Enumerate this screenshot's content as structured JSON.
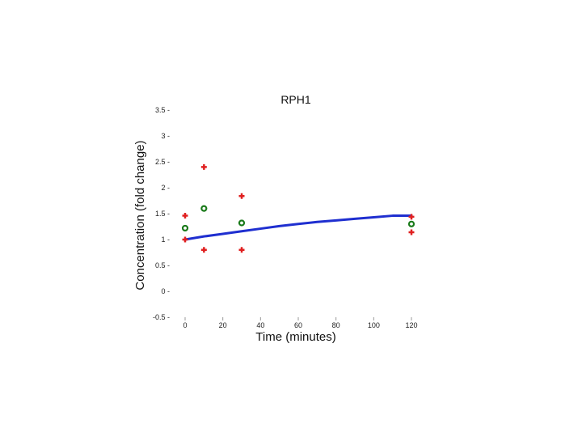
{
  "chart_data": {
    "type": "scatter",
    "title": "RPH1",
    "xlabel": "Time (minutes)",
    "ylabel": "Concentration (fold change)",
    "xlim": [
      0,
      120
    ],
    "ylim": [
      -0.5,
      3.5
    ],
    "xticks": [
      0,
      20,
      40,
      60,
      80,
      100,
      120
    ],
    "xtick_labels": [
      "0",
      "20",
      "40",
      "60",
      "80",
      "100",
      "120"
    ],
    "yticks": [
      -0.5,
      0,
      0.5,
      1,
      1.5,
      2,
      2.5,
      3,
      3.5
    ],
    "ytick_labels": [
      "-0.5 -",
      "0 -",
      "0.5 -",
      "1 -",
      "1.5 -",
      "2 -",
      "2.5 -",
      "3 -",
      "3.5 -"
    ],
    "grid": false,
    "series": [
      {
        "kind": "points",
        "marker": "plus",
        "color": "#e02020",
        "x": [
          0,
          0,
          10,
          10,
          30,
          30,
          120,
          120
        ],
        "y": [
          1.0,
          1.46,
          0.8,
          2.4,
          0.8,
          1.84,
          1.14,
          1.44
        ]
      },
      {
        "kind": "points",
        "marker": "circle",
        "color": "#1a7a1a",
        "x": [
          0,
          10,
          30,
          120
        ],
        "y": [
          1.22,
          1.6,
          1.32,
          1.3
        ]
      },
      {
        "kind": "line",
        "color": "#1f2fd0",
        "x": [
          0,
          10,
          20,
          30,
          40,
          50,
          60,
          70,
          80,
          90,
          100,
          110,
          120
        ],
        "y": [
          1.0,
          1.06,
          1.11,
          1.16,
          1.21,
          1.26,
          1.3,
          1.34,
          1.37,
          1.4,
          1.43,
          1.46,
          1.46
        ]
      }
    ]
  }
}
